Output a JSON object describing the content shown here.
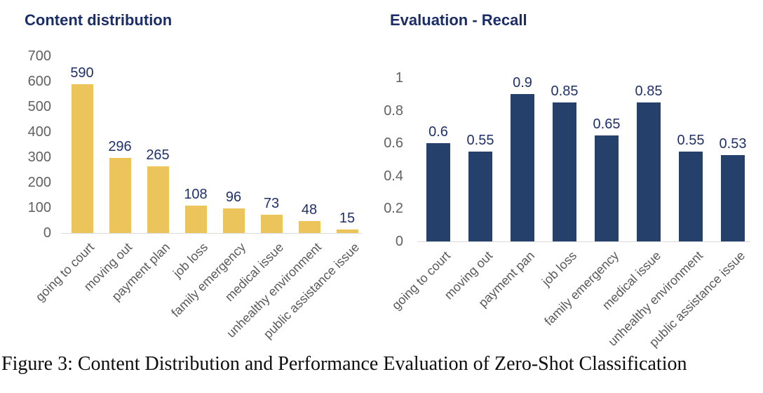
{
  "caption": "Figure 3: Content Distribution and Performance Evaluation of Zero-Shot Classification",
  "colors": {
    "left_bar": "#ecc45c",
    "right_bar": "#24406b",
    "value_label": "#1f3168",
    "title": "#1b2d66",
    "axis_text": "#616161",
    "category_text": "#595959"
  },
  "chart_data": [
    {
      "type": "bar",
      "title": "Content distribution",
      "categories": [
        "going to court",
        "moving out",
        "payment plan",
        "job loss",
        "family emergency",
        "medical issue",
        "unhealthy environment",
        "public assistance issue"
      ],
      "values": [
        590,
        296,
        265,
        108,
        96,
        73,
        48,
        15
      ],
      "value_labels": [
        "590",
        "296",
        "265",
        "108",
        "96",
        "73",
        "48",
        "15"
      ],
      "xlabel": "",
      "ylabel": "",
      "ylim": [
        0,
        700
      ],
      "yticks": [
        "700",
        "600",
        "500",
        "400",
        "300",
        "200",
        "100",
        "0"
      ],
      "ytick_values": [
        700,
        600,
        500,
        400,
        300,
        200,
        100,
        0
      ],
      "grid": false,
      "legend": null,
      "bar_color": "#ecc45c"
    },
    {
      "type": "bar",
      "title": "Evaluation - Recall",
      "categories": [
        "going to court",
        "moving out",
        "payment pan",
        "job loss",
        "family emergency",
        "medical issue",
        "unhealthy environment",
        "public assistance issue"
      ],
      "values": [
        0.6,
        0.55,
        0.9,
        0.85,
        0.65,
        0.85,
        0.55,
        0.53
      ],
      "value_labels": [
        "0.6",
        "0.55",
        "0.9",
        "0.85",
        "0.65",
        "0.85",
        "0.55",
        "0.53"
      ],
      "xlabel": "",
      "ylabel": "",
      "ylim": [
        0,
        1
      ],
      "yticks": [
        "1",
        "0.8",
        "0.6",
        "0.4",
        "0.2",
        "0"
      ],
      "ytick_values": [
        1,
        0.8,
        0.6,
        0.4,
        0.2,
        0
      ],
      "grid": false,
      "legend": null,
      "bar_color": "#24406b"
    }
  ]
}
